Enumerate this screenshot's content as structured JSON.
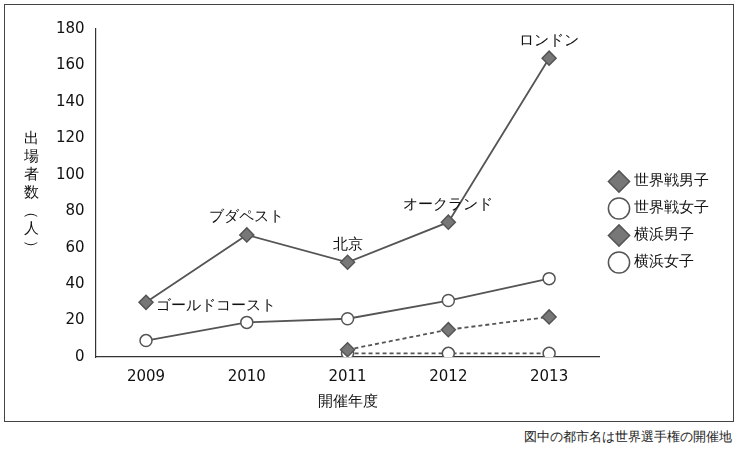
{
  "chart_data": {
    "type": "line",
    "x_label": "開催年度",
    "y_label": "出場者数（人）",
    "note": "図中の都市名は世界選手権の開催地",
    "categories": [
      "2009",
      "2010",
      "2011",
      "2012",
      "2013"
    ],
    "series": [
      {
        "name": "世界戦男子",
        "color": "#555555",
        "marker": "diamond",
        "line_style": "solid",
        "values": [
          30,
          67,
          52,
          74,
          164
        ],
        "point_labels": [
          "ゴールドコースト",
          "ブダペスト",
          "北京",
          "オークランド",
          "ロンドン"
        ]
      },
      {
        "name": "世界戦女子",
        "color": "#555555",
        "marker": "circle",
        "line_style": "solid",
        "values": [
          9,
          19,
          21,
          31,
          43
        ]
      },
      {
        "name": "横浜男子",
        "color": "#555555",
        "marker": "diamond",
        "line_style": "dashed",
        "values": [
          null,
          null,
          4,
          15,
          22
        ]
      },
      {
        "name": "横浜女子",
        "color": "#555555",
        "marker": "circle",
        "line_style": "dashed",
        "values": [
          null,
          null,
          2,
          2,
          2
        ]
      }
    ],
    "ylim": [
      0,
      180
    ],
    "yticks": [
      0,
      20,
      40,
      60,
      80,
      100,
      120,
      140,
      160,
      180
    ],
    "grid": false,
    "legend": "right"
  }
}
